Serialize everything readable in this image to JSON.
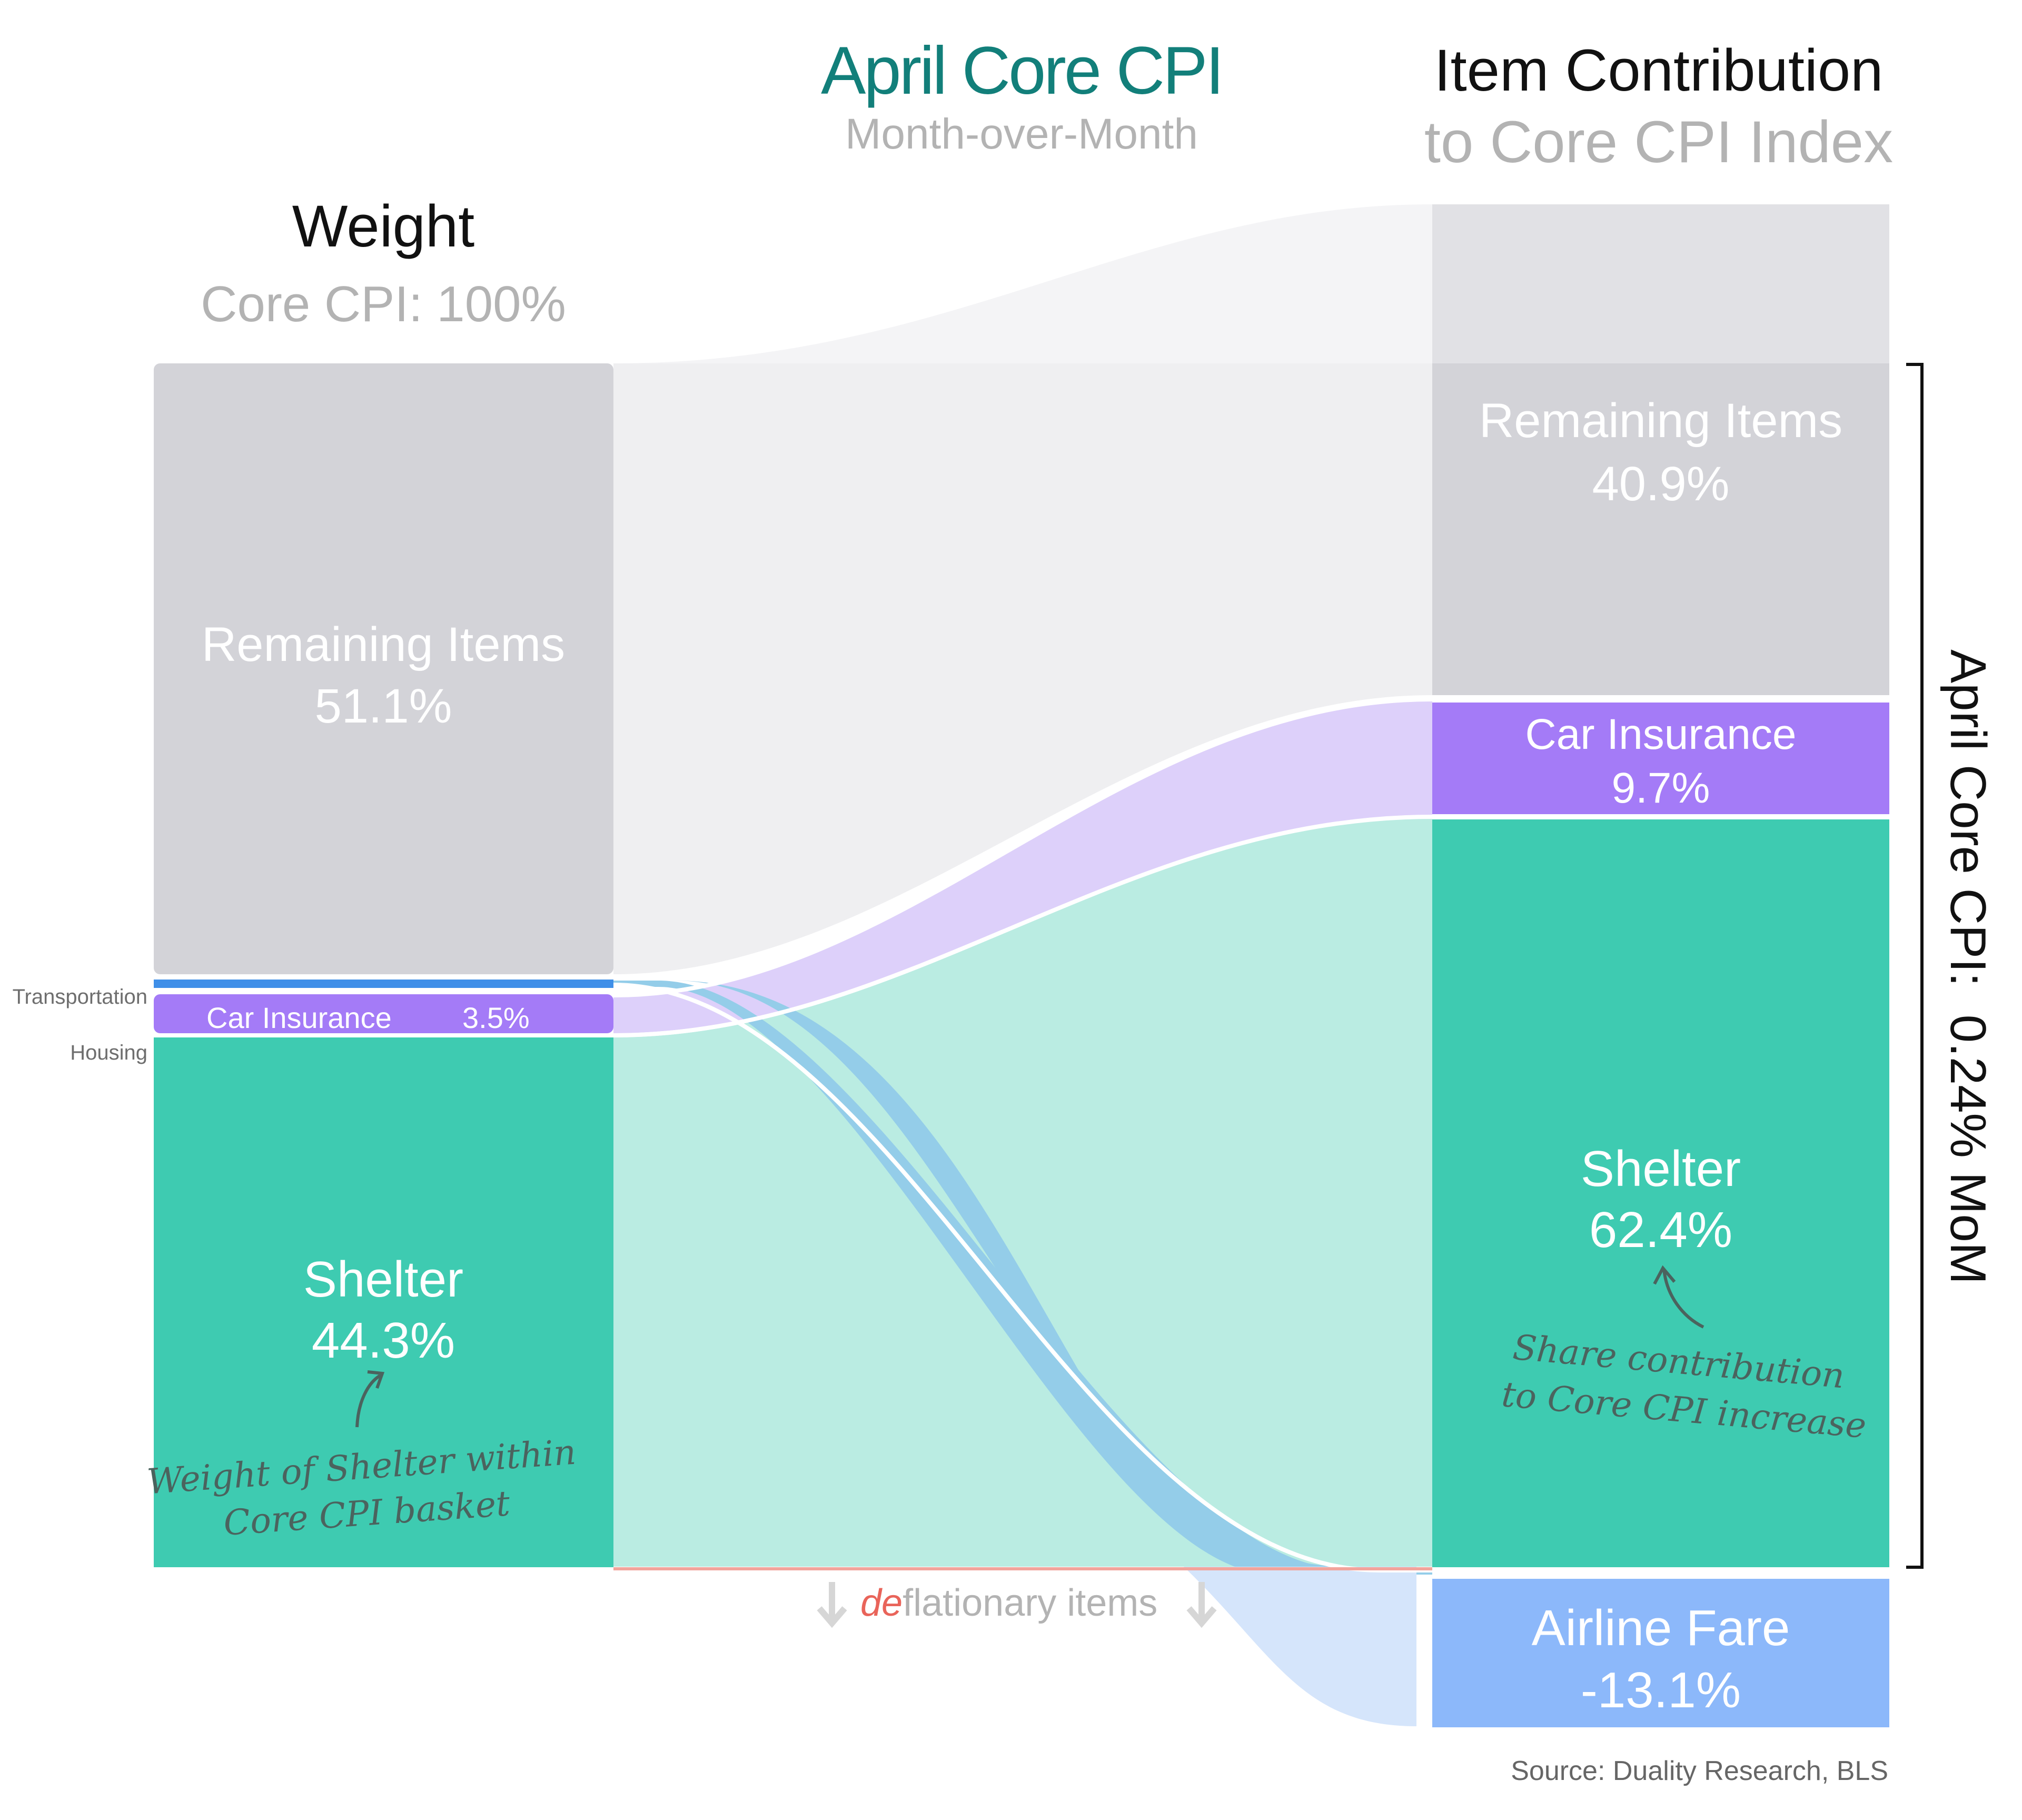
{
  "chart_data": {
    "type": "sankey",
    "title": "April Core CPI",
    "subtitle": "Month-over-Month",
    "left_column": {
      "title": "Weight",
      "subtitle": "Core CPI: 100%",
      "nodes": [
        {
          "name": "Remaining Items",
          "value": 51.1,
          "label": "51.1%"
        },
        {
          "name": "Airline Fare",
          "value": 0.8,
          "label": ""
        },
        {
          "name": "Car Insurance",
          "value": 3.5,
          "label": "3.5%"
        },
        {
          "name": "Shelter",
          "value": 44.3,
          "label": "44.3%"
        }
      ],
      "group_labels": {
        "transportation": "Transportation",
        "housing": "Housing"
      }
    },
    "right_column": {
      "title": "Item Contribution",
      "subtitle": "to Core CPI Index",
      "nodes": [
        {
          "name": "Remaining Items",
          "value": 40.9,
          "label": "40.9%"
        },
        {
          "name": "Car Insurance",
          "value": 9.7,
          "label": "9.7%"
        },
        {
          "name": "Shelter",
          "value": 62.4,
          "label": "62.4%"
        },
        {
          "name": "Airline Fare",
          "value": -13.1,
          "label": "-13.1%"
        }
      ]
    },
    "total": {
      "label": "April Core CPI:  0.24% MoM"
    },
    "deflationary": {
      "prefix": "de",
      "suffix": "flationary items"
    },
    "annotations": {
      "left": [
        "Weight of Shelter within",
        "Core CPI basket"
      ],
      "right": [
        "Share contribution",
        "to Core CPI increase"
      ]
    },
    "source": "Source: Duality Research, BLS",
    "colors": {
      "remaining": "#d3d3d8",
      "remaining_top": "#e1e1e5",
      "remaining_flow": "#efeff1",
      "remaining_flow_top": "#f4f4f6",
      "car_insurance": "#a47bf7",
      "car_insurance_flow": "#ddd0fa",
      "shelter": "#3ecbb1",
      "shelter_flow": "#baece2",
      "airline_left": "#3f8fe8",
      "airline_flow": "#94cde9",
      "airline_flow_lower": "#d5e5fb",
      "airline_right": "#8cb8fa",
      "title_teal": "#127f7a",
      "gray_text": "#b3b3b3",
      "deflation_red": "#e9645a",
      "annotation": "#4b635e"
    }
  }
}
